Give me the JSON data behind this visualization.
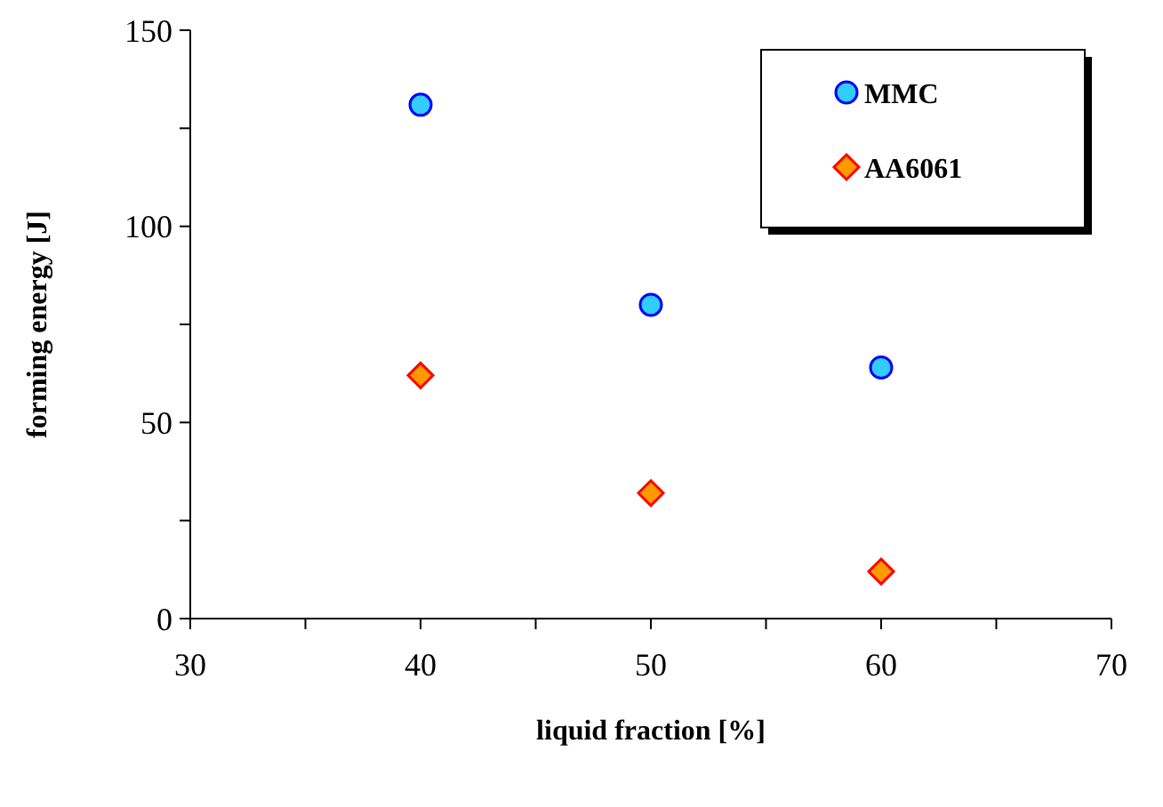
{
  "chart_data": {
    "type": "scatter",
    "xlabel": "liquid fraction [%]",
    "ylabel": "forming energy [J]",
    "x": [
      40,
      50,
      60
    ],
    "series": [
      {
        "name": "MMC",
        "color": "#33ccff",
        "marker": "circle",
        "values": [
          131,
          80,
          64
        ]
      },
      {
        "name": "AA6061",
        "color": "#ff9900",
        "marker": "diamond",
        "values": [
          62,
          32,
          12
        ]
      }
    ],
    "xlim": [
      30,
      70
    ],
    "xticks": [
      30,
      {
        "value": 35,
        "label": null
      },
      40,
      {
        "value": 45,
        "label": null
      },
      50,
      {
        "value": 55,
        "label": null
      },
      60,
      {
        "value": 65,
        "label": null
      },
      70
    ],
    "ylim": [
      0,
      150
    ],
    "yticks": [
      0,
      {
        "value": 25,
        "label": null
      },
      50,
      {
        "value": 75,
        "label": null
      },
      100,
      {
        "value": 125,
        "label": null
      },
      150
    ],
    "grid": false,
    "legend": "top right"
  }
}
